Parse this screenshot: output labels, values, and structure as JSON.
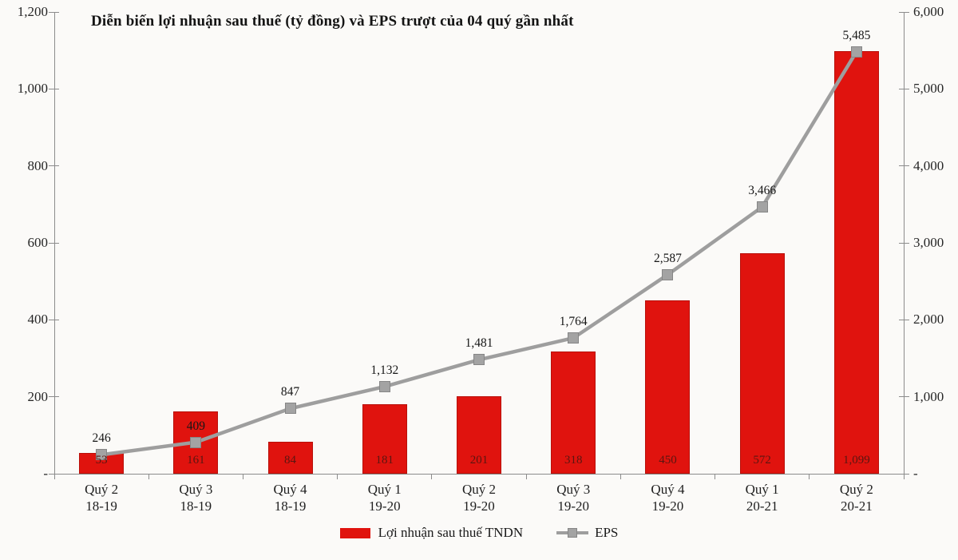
{
  "title": "Diễn biến lợi nhuận sau thuế (tỷ đồng) và EPS trượt của 04 quý gần nhất",
  "legend": {
    "bar_label": "Lợi nhuận sau thuế TNDN",
    "eps_label": "EPS"
  },
  "colors": {
    "bar": "#e0130e",
    "bar_border": "#b8100a",
    "bar_value_text": "#5a1611",
    "line": "#9e9e9e",
    "marker_fill": "#a3a3a3",
    "marker_border": "#868686",
    "axis_line": "#8c8c8c",
    "text": "#1f1f1f"
  },
  "chart_data": {
    "type": "combo-bar-line",
    "title": "Diễn biến lợi nhuận sau thuế (tỷ đồng) và EPS trượt của 04 quý gần nhất",
    "categories": [
      [
        "Quý 2",
        "18-19"
      ],
      [
        "Quý 3",
        "18-19"
      ],
      [
        "Quý 4",
        "18-19"
      ],
      [
        "Quý 1",
        "19-20"
      ],
      [
        "Quý 2",
        "19-20"
      ],
      [
        "Quý 3",
        "19-20"
      ],
      [
        "Quý 4",
        "19-20"
      ],
      [
        "Quý 1",
        "20-21"
      ],
      [
        "Quý 2",
        "20-21"
      ]
    ],
    "series": [
      {
        "name": "Lợi nhuận sau thuế TNDN",
        "type": "bar",
        "axis": "left",
        "values": [
          53,
          161,
          84,
          181,
          201,
          318,
          450,
          572,
          1099
        ],
        "labels": [
          "53",
          "161",
          "84",
          "181",
          "201",
          "318",
          "450",
          "572",
          "1,099"
        ]
      },
      {
        "name": "EPS",
        "type": "line",
        "axis": "right",
        "values": [
          246,
          409,
          847,
          1132,
          1481,
          1764,
          2587,
          3466,
          5485
        ],
        "labels": [
          "246",
          "409",
          "847",
          "1,132",
          "1,481",
          "1,764",
          "2,587",
          "3,466",
          "5,485"
        ]
      }
    ],
    "left_axis": {
      "min": 0,
      "max": 1200,
      "tick_values": [
        1200,
        1000,
        800,
        600,
        400,
        200,
        0
      ],
      "tick_labels": [
        "1,200",
        "1,000",
        "800",
        "600",
        "400",
        "200",
        "-"
      ]
    },
    "right_axis": {
      "min": 0,
      "max": 6000,
      "tick_values": [
        6000,
        5000,
        4000,
        3000,
        2000,
        1000,
        0
      ],
      "tick_labels": [
        "6,000",
        "5,000",
        "4,000",
        "3,000",
        "2,000",
        "1,000",
        "-"
      ]
    },
    "grid": false,
    "legend_position": "bottom"
  }
}
